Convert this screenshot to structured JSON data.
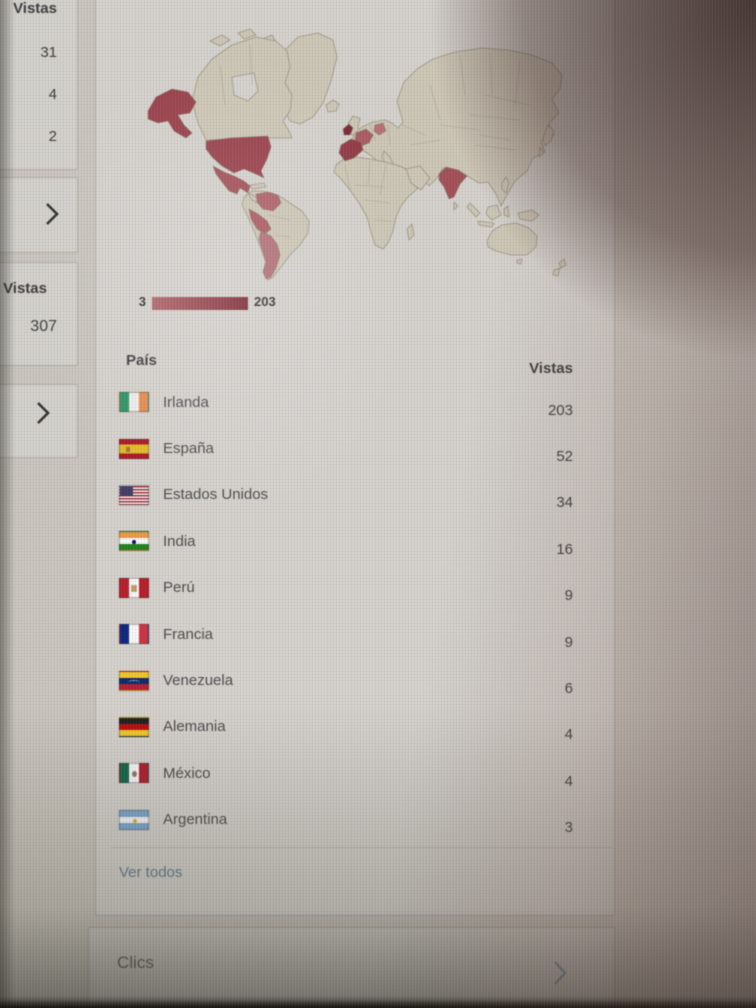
{
  "sidebar": {
    "panel_top": {
      "header": "Vistas",
      "values": [
        "31",
        "4",
        "2"
      ]
    },
    "panel_total": {
      "header": "Vistas",
      "value": "307"
    }
  },
  "countries": {
    "legend": {
      "min": "3",
      "max": "203"
    },
    "columns": {
      "country": "País",
      "views": "Vistas"
    },
    "rows": [
      {
        "flag": "ireland",
        "name": "Irlanda",
        "views": "203"
      },
      {
        "flag": "spain",
        "name": "España",
        "views": "52"
      },
      {
        "flag": "usa",
        "name": "Estados Unidos",
        "views": "34"
      },
      {
        "flag": "india",
        "name": "India",
        "views": "16"
      },
      {
        "flag": "peru",
        "name": "Perú",
        "views": "9"
      },
      {
        "flag": "france",
        "name": "Francia",
        "views": "9"
      },
      {
        "flag": "venezuela",
        "name": "Venezuela",
        "views": "6"
      },
      {
        "flag": "germany",
        "name": "Alemania",
        "views": "4"
      },
      {
        "flag": "mexico",
        "name": "México",
        "views": "4"
      },
      {
        "flag": "argentina",
        "name": "Argentina",
        "views": "3"
      }
    ],
    "view_all": "Ver todos"
  },
  "clicks": {
    "title": "Clics"
  },
  "colors": {
    "legend_gradient_start": "#c0616b",
    "legend_gradient_end": "#8c1f2d",
    "map_land": "#d3cbb7",
    "link_blue": "#5b7d97"
  }
}
